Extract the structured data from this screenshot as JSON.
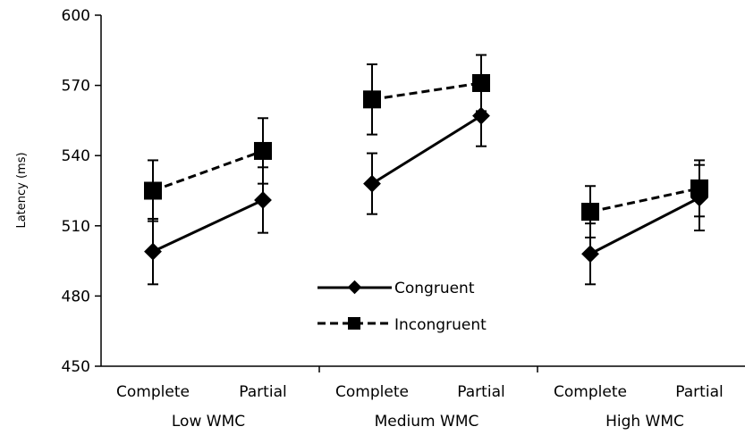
{
  "chart_data": {
    "type": "line",
    "title": "",
    "xlabel": "",
    "ylabel": "Latency (ms)",
    "ylim": [
      450,
      600
    ],
    "yticks": [
      450,
      480,
      510,
      540,
      570,
      600
    ],
    "grid": false,
    "legend_position": "center-bottom",
    "groups": [
      {
        "label": "Low WMC",
        "categories": [
          "Complete",
          "Partial"
        ]
      },
      {
        "label": "Medium WMC",
        "categories": [
          "Complete",
          "Partial"
        ]
      },
      {
        "label": "High WMC",
        "categories": [
          "Complete",
          "Partial"
        ]
      }
    ],
    "series": [
      {
        "name": "Congruent",
        "line_style": "solid",
        "marker": "diamond",
        "values": [
          [
            499,
            521
          ],
          [
            528,
            557
          ],
          [
            498,
            522
          ]
        ],
        "error": [
          [
            14,
            14
          ],
          [
            13,
            13
          ],
          [
            13,
            14
          ]
        ]
      },
      {
        "name": "Incongruent",
        "line_style": "dashed",
        "marker": "square",
        "values": [
          [
            525,
            542
          ],
          [
            564,
            571
          ],
          [
            516,
            526
          ]
        ],
        "error": [
          [
            13,
            14
          ],
          [
            15,
            12
          ],
          [
            11,
            12
          ]
        ]
      }
    ]
  }
}
